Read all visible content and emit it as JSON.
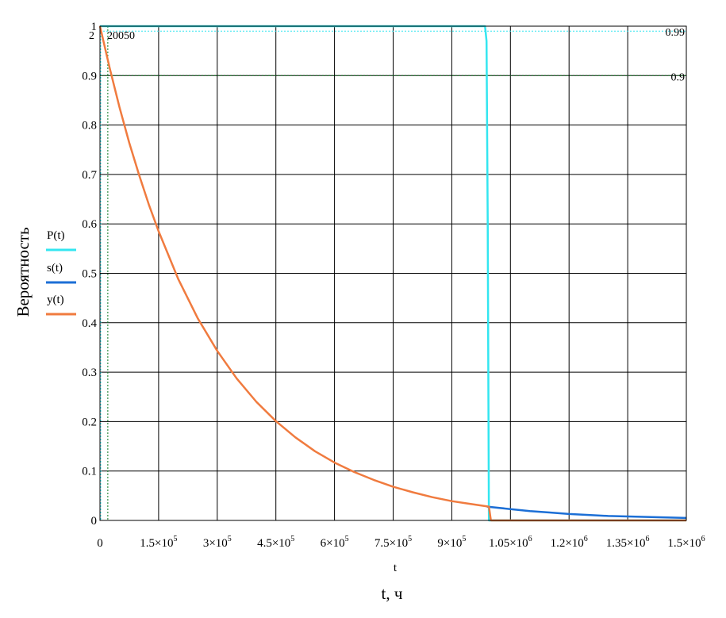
{
  "chart_data": {
    "type": "line",
    "xlabel_inner": "t",
    "xlabel": "t, ч",
    "ylabel": "Вероятность",
    "xlim": [
      0,
      1500000
    ],
    "ylim": [
      0,
      1
    ],
    "x_ticks": [
      {
        "value": 0,
        "mantissa": "0",
        "exp": ""
      },
      {
        "value": 150000,
        "mantissa": "1.5×10",
        "exp": "5"
      },
      {
        "value": 300000,
        "mantissa": "3×10",
        "exp": "5"
      },
      {
        "value": 450000,
        "mantissa": "4.5×10",
        "exp": "5"
      },
      {
        "value": 600000,
        "mantissa": "6×10",
        "exp": "5"
      },
      {
        "value": 750000,
        "mantissa": "7.5×10",
        "exp": "5"
      },
      {
        "value": 900000,
        "mantissa": "9×10",
        "exp": "5"
      },
      {
        "value": 1050000,
        "mantissa": "1.05×10",
        "exp": "6"
      },
      {
        "value": 1200000,
        "mantissa": "1.2×10",
        "exp": "6"
      },
      {
        "value": 1350000,
        "mantissa": "1.35×10",
        "exp": "6"
      },
      {
        "value": 1500000,
        "mantissa": "1.5×10",
        "exp": "6"
      }
    ],
    "y_ticks": [
      "0",
      "0.1",
      "0.2",
      "0.3",
      "0.4",
      "0.5",
      "0.6",
      "0.7",
      "0.8",
      "0.9",
      "1"
    ],
    "y_tick_values": [
      0,
      0.1,
      0.2,
      0.3,
      0.4,
      0.5,
      0.6,
      0.7,
      0.8,
      0.9,
      1
    ],
    "grid": true,
    "legend_position": "left",
    "series": [
      {
        "name": "P(t)",
        "color": "#33e6f0",
        "x": [
          0,
          985000,
          989000,
          992000,
          995000,
          1500000
        ],
        "y": [
          1,
          1,
          0.97,
          0.6,
          0,
          0
        ]
      },
      {
        "name": "s(t)",
        "color": "#1c6fd6",
        "x": [
          990000,
          1050000,
          1100000,
          1150000,
          1200000,
          1250000,
          1300000,
          1350000,
          1400000,
          1450000,
          1500000
        ],
        "y": [
          0.028,
          0.023,
          0.019,
          0.016,
          0.013,
          0.011,
          0.009,
          0.008,
          0.007,
          0.006,
          0.005
        ]
      },
      {
        "name": "y(t)",
        "color": "#f07b3f",
        "x": [
          0,
          25000,
          50000,
          75000,
          100000,
          125000,
          150000,
          200000,
          250000,
          300000,
          350000,
          400000,
          450000,
          500000,
          550000,
          600000,
          650000,
          700000,
          750000,
          800000,
          850000,
          900000,
          950000,
          995000,
          1000000,
          1500000
        ],
        "y": [
          1,
          0.915,
          0.836,
          0.764,
          0.699,
          0.639,
          0.585,
          0.489,
          0.409,
          0.343,
          0.287,
          0.24,
          0.201,
          0.168,
          0.14,
          0.117,
          0.098,
          0.082,
          0.068,
          0.057,
          0.047,
          0.039,
          0.033,
          0.028,
          0,
          0
        ]
      }
    ],
    "markers": {
      "vertical_value": 20050,
      "vertical_label": "20050",
      "corner_label": "2",
      "horizontal": [
        {
          "value": 0.99,
          "label": "0.99"
        },
        {
          "value": 0.9,
          "label": "0.9"
        }
      ],
      "color": "#0a7a1f",
      "cyan_color": "#33e6f0"
    }
  }
}
